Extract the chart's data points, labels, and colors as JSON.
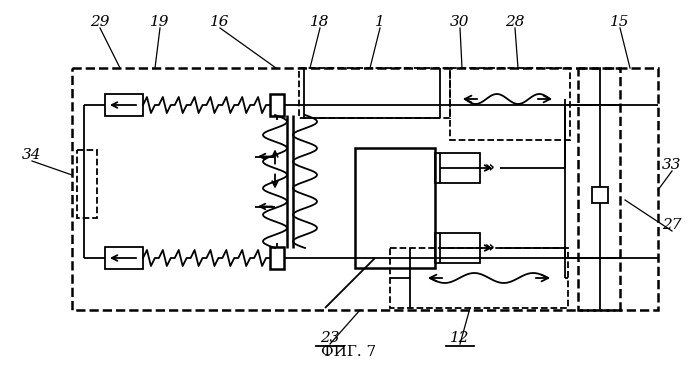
{
  "bg_color": "#ffffff",
  "line_color": "#000000",
  "fig_caption": "ФИГ. 7",
  "figsize": [
    6.99,
    3.65
  ],
  "dpi": 100
}
